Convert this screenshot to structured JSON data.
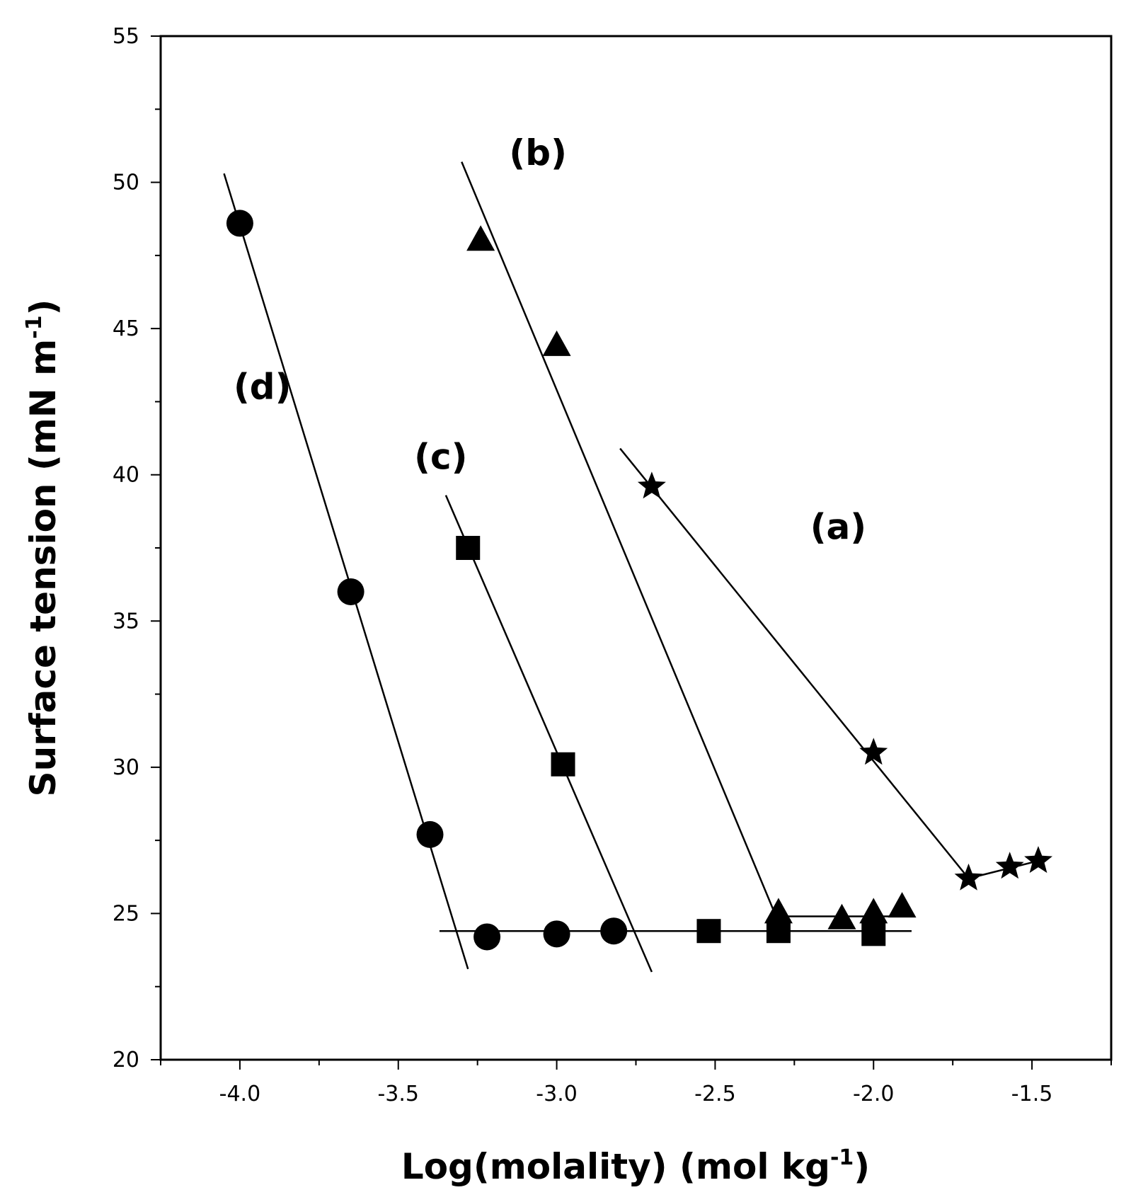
{
  "chart_data": {
    "type": "scatter",
    "xlabel": "Log(molality) (mol kg",
    "xlabel_sup": "-1",
    "xlabel_tail": ")",
    "ylabel": "Surface tension (mN m",
    "ylabel_sup": "-1",
    "ylabel_tail": ")",
    "xlim": [
      -4.25,
      -1.25
    ],
    "ylim": [
      20,
      55
    ],
    "x_ticks": [
      -4.0,
      -3.5,
      -3.0,
      -2.5,
      -2.0,
      -1.5
    ],
    "x_tick_labels": [
      "-4.0",
      "-3.5",
      "-3.0",
      "-2.5",
      "-2.0",
      "-1.5"
    ],
    "y_ticks": [
      20,
      25,
      30,
      35,
      40,
      45,
      50,
      55
    ],
    "y_tick_labels": [
      "20",
      "25",
      "30",
      "35",
      "40",
      "45",
      "50",
      "55"
    ],
    "series": [
      {
        "name": "(a)",
        "marker": "star",
        "label_pos": [
          -2.2,
          37.8
        ],
        "points": [
          [
            -2.7,
            39.6
          ],
          [
            -2.0,
            30.5
          ],
          [
            -1.7,
            26.2
          ],
          [
            -1.57,
            26.6
          ],
          [
            -1.48,
            26.8
          ]
        ],
        "fit_lines": [
          [
            [
              -2.8,
              40.9
            ],
            [
              -1.7,
              26.2
            ]
          ],
          [
            [
              -1.7,
              26.2
            ],
            [
              -1.48,
              26.8
            ]
          ]
        ]
      },
      {
        "name": "(b)",
        "marker": "triangle",
        "label_pos": [
          -3.15,
          50.6
        ],
        "points": [
          [
            -3.24,
            48.0
          ],
          [
            -3.0,
            44.4
          ],
          [
            -2.3,
            25.0
          ],
          [
            -2.1,
            24.8
          ],
          [
            -2.0,
            25.0
          ],
          [
            -1.91,
            25.2
          ]
        ],
        "fit_lines": [
          [
            [
              -3.3,
              50.7
            ],
            [
              -2.3,
              24.7
            ]
          ],
          [
            [
              -2.3,
              24.9
            ],
            [
              -1.91,
              24.9
            ]
          ]
        ]
      },
      {
        "name": "(c)",
        "marker": "square",
        "label_pos": [
          -3.45,
          40.2
        ],
        "points": [
          [
            -3.28,
            37.5
          ],
          [
            -2.98,
            30.1
          ],
          [
            -2.52,
            24.4
          ],
          [
            -2.3,
            24.4
          ],
          [
            -2.0,
            24.3
          ]
        ],
        "fit_lines": [
          [
            [
              -3.35,
              39.3
            ],
            [
              -2.7,
              23.0
            ]
          ]
        ]
      },
      {
        "name": "(d)",
        "marker": "circle",
        "label_pos": [
          -4.02,
          42.6
        ],
        "points": [
          [
            -4.0,
            48.6
          ],
          [
            -3.65,
            36.0
          ],
          [
            -3.4,
            27.7
          ],
          [
            -3.22,
            24.2
          ],
          [
            -3.0,
            24.3
          ],
          [
            -2.82,
            24.4
          ]
        ],
        "fit_lines": [
          [
            [
              -4.05,
              50.3
            ],
            [
              -3.28,
              23.1
            ]
          ],
          [
            [
              -3.37,
              24.4
            ],
            [
              -1.88,
              24.4
            ]
          ]
        ]
      }
    ]
  }
}
